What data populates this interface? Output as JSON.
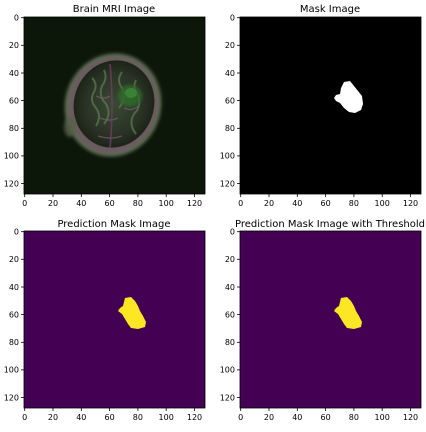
{
  "panels": [
    {
      "title": "Brain MRI Image",
      "kind": "mri",
      "x_ticks": [
        "0",
        "20",
        "40",
        "60",
        "80",
        "100",
        "120"
      ],
      "y_ticks": [
        "0",
        "20",
        "40",
        "60",
        "80",
        "100",
        "120"
      ]
    },
    {
      "title": "Mask Image",
      "kind": "mask",
      "background_color": "#000000",
      "region_color": "#ffffff",
      "x_ticks": [
        "0",
        "20",
        "40",
        "60",
        "80",
        "100",
        "120"
      ],
      "y_ticks": [
        "0",
        "20",
        "40",
        "60",
        "80",
        "100",
        "120"
      ]
    },
    {
      "title": "Prediction Mask Image",
      "kind": "prediction",
      "background_color": "#440154",
      "region_color": "#fde725",
      "x_ticks": [
        "0",
        "20",
        "40",
        "60",
        "80",
        "100",
        "120"
      ],
      "y_ticks": [
        "0",
        "20",
        "40",
        "60",
        "80",
        "100",
        "120"
      ]
    },
    {
      "title": "Prediction Mask Image with Threshold",
      "kind": "prediction",
      "background_color": "#440154",
      "region_color": "#fde725",
      "x_ticks": [
        "0",
        "20",
        "40",
        "60",
        "80",
        "100",
        "120"
      ],
      "y_ticks": [
        "0",
        "20",
        "40",
        "60",
        "80",
        "100",
        "120"
      ]
    }
  ]
}
